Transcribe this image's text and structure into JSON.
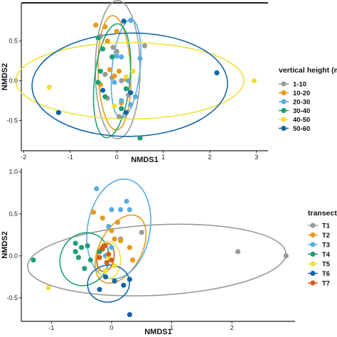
{
  "chart_data": [
    {
      "type": "scatter",
      "xlabel": "NMDS1",
      "ylabel": "NMDS2",
      "xlim": [
        -2.05,
        3.25
      ],
      "ylim": [
        -0.88,
        0.98
      ],
      "x_ticks": [
        -2,
        -1,
        0,
        1,
        2,
        3
      ],
      "y_ticks": [
        -0.5,
        0.0,
        0.5
      ],
      "x_tick_labels": [
        "-2",
        "-1",
        "0",
        "1",
        "2",
        "3"
      ],
      "y_tick_labels": [
        "-0.5",
        "0.0",
        "0.5"
      ],
      "grid": false,
      "legend": {
        "title": "vertical height (m)",
        "position": "right",
        "entries": [
          {
            "label": "1-10",
            "color": "#9a9a9a"
          },
          {
            "label": "10-20",
            "color": "#e69b1c"
          },
          {
            "label": "20-30",
            "color": "#5aade0"
          },
          {
            "label": "30-40",
            "color": "#1f9e73"
          },
          {
            "label": "40-50",
            "color": "#eee03c"
          },
          {
            "label": "50-60",
            "color": "#1565a8"
          }
        ]
      },
      "ellipses": [
        {
          "series": "1-10",
          "color": "#9a9a9a",
          "cx": 0.02,
          "cy": 0.14,
          "rx": 0.48,
          "ry": 0.87,
          "angle": 0
        },
        {
          "series": "10-20",
          "color": "#e69b1c",
          "cx": -0.05,
          "cy": 0.1,
          "rx": 0.35,
          "ry": 0.72,
          "angle": -2
        },
        {
          "series": "20-30",
          "color": "#5aade0",
          "cx": 0.2,
          "cy": 0.15,
          "rx": 0.3,
          "ry": 0.62,
          "angle": 6
        },
        {
          "series": "30-40",
          "color": "#1f9e73",
          "cx": -0.1,
          "cy": 0.0,
          "rx": 0.38,
          "ry": 0.72,
          "angle": 6
        },
        {
          "series": "40-50",
          "color": "#eee03c",
          "cx": 0.28,
          "cy": 0.0,
          "rx": 2.45,
          "ry": 0.48,
          "angle": 0
        },
        {
          "series": "50-60",
          "color": "#1565a8",
          "cx": 0.28,
          "cy": -0.05,
          "rx": 2.1,
          "ry": 0.65,
          "angle": -1
        }
      ],
      "series": [
        {
          "name": "1-10",
          "color": "#9a9a9a",
          "points": [
            [
              -0.35,
              0.56
            ],
            [
              0.6,
              0.44
            ],
            [
              0.0,
              0.37
            ],
            [
              -0.25,
              0.08
            ],
            [
              -0.1,
              0.04
            ],
            [
              0.1,
              0.0
            ],
            [
              -0.2,
              -0.22
            ],
            [
              0.25,
              -0.18
            ],
            [
              0.05,
              -0.45
            ],
            [
              -0.08,
              0.42
            ]
          ]
        },
        {
          "name": "10-20",
          "color": "#e69b1c",
          "points": [
            [
              -0.45,
              0.7
            ],
            [
              -0.25,
              0.68
            ],
            [
              0.0,
              0.62
            ],
            [
              -0.2,
              0.5
            ],
            [
              -0.15,
              0.14
            ],
            [
              0.05,
              0.12
            ],
            [
              -0.05,
              0.06
            ],
            [
              0.2,
              0.02
            ],
            [
              -0.35,
              -0.05
            ],
            [
              0.1,
              -0.28
            ]
          ]
        },
        {
          "name": "20-30",
          "color": "#5aade0",
          "points": [
            [
              0.3,
              0.76
            ],
            [
              0.5,
              0.28
            ],
            [
              0.0,
              0.31
            ],
            [
              0.1,
              0.3
            ],
            [
              -0.05,
              -0.02
            ],
            [
              0.25,
              0.0
            ],
            [
              0.4,
              -0.2
            ],
            [
              0.3,
              -0.3
            ],
            [
              0.1,
              -0.25
            ]
          ]
        },
        {
          "name": "30-40",
          "color": "#1f9e73",
          "points": [
            [
              -0.4,
              0.54
            ],
            [
              -0.3,
              0.4
            ],
            [
              -0.1,
              0.3
            ],
            [
              -0.35,
              0.12
            ],
            [
              -0.4,
              -0.02
            ],
            [
              -0.25,
              -0.2
            ],
            [
              0.1,
              -0.35
            ],
            [
              0.5,
              -0.72
            ],
            [
              0.2,
              -0.1
            ]
          ]
        },
        {
          "name": "40-50",
          "color": "#eee03c",
          "points": [
            [
              -1.45,
              -0.08
            ],
            [
              2.95,
              0.0
            ],
            [
              0.2,
              0.05
            ],
            [
              -0.05,
              -0.32
            ],
            [
              0.35,
              0.12
            ]
          ]
        },
        {
          "name": "50-60",
          "color": "#1565a8",
          "points": [
            [
              0.15,
              0.75
            ],
            [
              -1.25,
              -0.4
            ],
            [
              2.15,
              0.1
            ],
            [
              0.3,
              -0.15
            ],
            [
              -0.3,
              -0.12
            ],
            [
              0.2,
              -0.4
            ]
          ]
        }
      ]
    },
    {
      "type": "scatter",
      "xlabel": "NMDS1",
      "ylabel": "NMDS2",
      "xlim": [
        -1.5,
        3.05
      ],
      "ylim": [
        -0.78,
        1.04
      ],
      "x_ticks": [
        -1,
        0,
        1,
        2
      ],
      "y_ticks": [
        -0.5,
        0.0,
        0.5,
        1.0
      ],
      "x_tick_labels": [
        "-1",
        "0",
        "1",
        "2"
      ],
      "y_tick_labels": [
        "-0.5",
        "0.0",
        "0.5",
        "1.0"
      ],
      "grid": false,
      "legend": {
        "title": "transect",
        "position": "right",
        "entries": [
          {
            "label": "T1",
            "color": "#9a9a9a"
          },
          {
            "label": "T2",
            "color": "#e69b1c"
          },
          {
            "label": "T3",
            "color": "#5aade0"
          },
          {
            "label": "T4",
            "color": "#1f9e73"
          },
          {
            "label": "T5",
            "color": "#eee03c"
          },
          {
            "label": "T6",
            "color": "#1565a8"
          },
          {
            "label": "T7",
            "color": "#d35f1a"
          }
        ]
      },
      "ellipses": [
        {
          "series": "T1",
          "color": "#9a9a9a",
          "cx": 0.75,
          "cy": -0.05,
          "rx": 2.15,
          "ry": 0.42,
          "angle": -3
        },
        {
          "series": "T2",
          "color": "#e69b1c",
          "cx": 0.15,
          "cy": 0.08,
          "rx": 0.35,
          "ry": 0.44,
          "angle": 28
        },
        {
          "series": "T3",
          "color": "#5aade0",
          "cx": 0.12,
          "cy": 0.32,
          "rx": 0.52,
          "ry": 0.6,
          "angle": 10
        },
        {
          "series": "T4",
          "color": "#1f9e73",
          "cx": -0.45,
          "cy": -0.04,
          "rx": 0.4,
          "ry": 0.32,
          "angle": 25
        },
        {
          "series": "T5",
          "color": "#eee03c",
          "cx": -0.05,
          "cy": -0.05,
          "rx": 0.2,
          "ry": 0.22,
          "angle": 0
        },
        {
          "series": "T6",
          "color": "#1565a8",
          "cx": -0.05,
          "cy": -0.33,
          "rx": 0.35,
          "ry": 0.22,
          "angle": -10
        },
        {
          "series": "T7",
          "color": "#d35f1a",
          "cx": -0.1,
          "cy": -0.02,
          "rx": 0.14,
          "ry": 0.17,
          "angle": 10
        }
      ],
      "series": [
        {
          "name": "T1",
          "color": "#9a9a9a",
          "points": [
            [
              0.5,
              0.28
            ],
            [
              2.1,
              0.05
            ],
            [
              2.9,
              0.0
            ],
            [
              0.15,
              0.2
            ]
          ]
        },
        {
          "name": "T2",
          "color": "#e69b1c",
          "points": [
            [
              -0.3,
              0.52
            ],
            [
              -0.15,
              0.45
            ],
            [
              0.1,
              0.4
            ],
            [
              0.05,
              0.2
            ],
            [
              0.15,
              0.18
            ],
            [
              0.3,
              0.1
            ],
            [
              0.35,
              -0.05
            ],
            [
              -0.1,
              0.12
            ],
            [
              0.0,
              0.3
            ]
          ]
        },
        {
          "name": "T3",
          "color": "#5aade0",
          "points": [
            [
              -0.25,
              0.8
            ],
            [
              0.25,
              0.65
            ],
            [
              0.0,
              0.55
            ],
            [
              0.15,
              0.55
            ],
            [
              0.3,
              0.55
            ],
            [
              -0.05,
              0.35
            ],
            [
              -0.1,
              0.0
            ],
            [
              0.0,
              0.1
            ]
          ]
        },
        {
          "name": "T4",
          "color": "#1f9e73",
          "points": [
            [
              -1.3,
              -0.05
            ],
            [
              -0.6,
              0.15
            ],
            [
              -0.5,
              0.1
            ],
            [
              -0.4,
              0.12
            ],
            [
              -0.55,
              -0.02
            ],
            [
              -0.35,
              -0.05
            ],
            [
              -0.45,
              -0.15
            ],
            [
              -0.2,
              0.05
            ],
            [
              -0.6,
              0.05
            ]
          ]
        },
        {
          "name": "T5",
          "color": "#eee03c",
          "points": [
            [
              -1.05,
              -0.38
            ],
            [
              -0.05,
              -0.02
            ],
            [
              -0.1,
              -0.18
            ],
            [
              0.05,
              -0.12
            ]
          ]
        },
        {
          "name": "T6",
          "color": "#1565a8",
          "points": [
            [
              -0.1,
              -0.25
            ],
            [
              0.05,
              -0.3
            ],
            [
              0.2,
              -0.35
            ],
            [
              0.3,
              -0.28
            ],
            [
              0.3,
              -0.7
            ],
            [
              -0.2,
              -0.4
            ]
          ]
        },
        {
          "name": "T7",
          "color": "#d35f1a",
          "points": [
            [
              -0.15,
              0.08
            ],
            [
              -0.05,
              0.02
            ],
            [
              -0.2,
              -0.02
            ],
            [
              -0.08,
              -0.08
            ],
            [
              -0.12,
              0.12
            ],
            [
              0.0,
              -0.05
            ]
          ]
        }
      ]
    }
  ]
}
